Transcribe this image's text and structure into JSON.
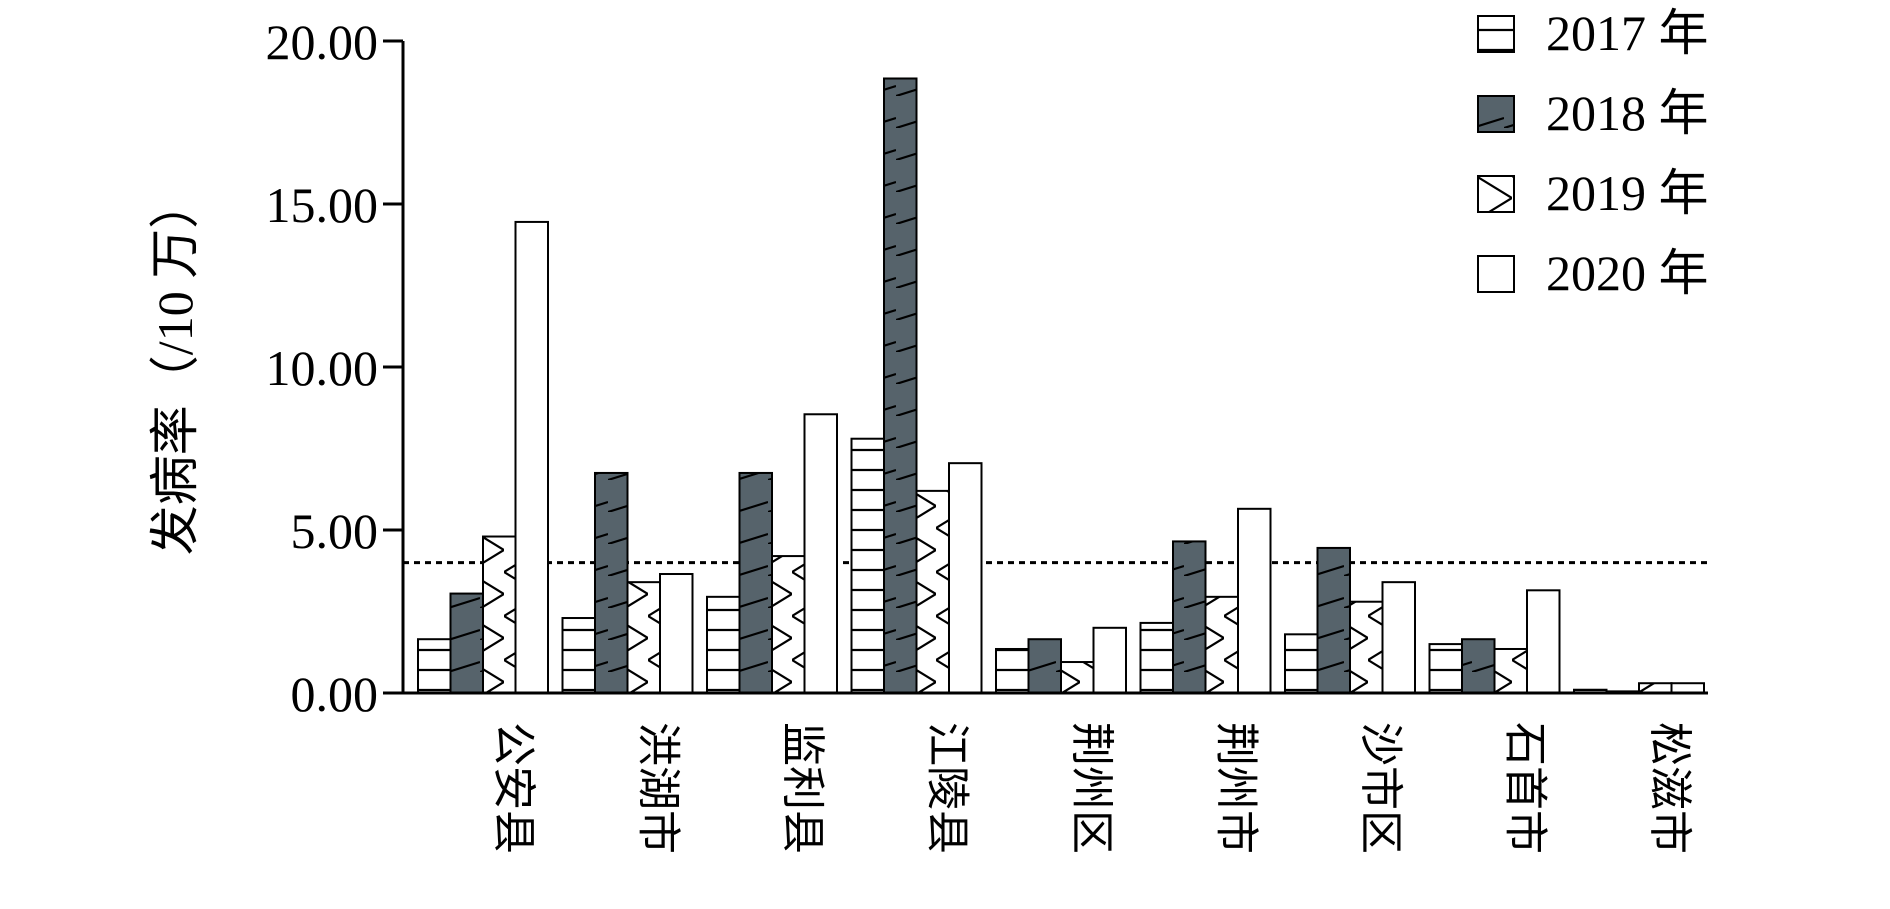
{
  "chart_data": {
    "type": "bar",
    "title": "",
    "xlabel": "",
    "ylabel": "发病率（/10 万）",
    "ylim": [
      0,
      20
    ],
    "yticks": [
      "0.00",
      "5.00",
      "10.00",
      "15.00",
      "20.00"
    ],
    "reference_line": 4.0,
    "legend_position": "top-right",
    "categories": [
      "公安县",
      "洪湖市",
      "监利县",
      "江陵县",
      "荆州区",
      "荆州市",
      "沙市区",
      "石首市",
      "松滋市"
    ],
    "series": [
      {
        "name": "2017 年",
        "pattern": "horizontal-lines",
        "color": "#ffffff",
        "values": [
          1.65,
          2.3,
          2.95,
          7.8,
          1.35,
          2.15,
          1.8,
          1.5,
          0.1
        ]
      },
      {
        "name": "2018 年",
        "pattern": "diagonal-lines-filled",
        "color": "#56636b",
        "values": [
          3.05,
          6.75,
          6.75,
          18.85,
          1.65,
          4.65,
          4.45,
          1.65,
          0.05
        ]
      },
      {
        "name": "2019 年",
        "pattern": "cross-hatch",
        "color": "#ffffff",
        "values": [
          4.8,
          3.4,
          4.2,
          6.2,
          0.95,
          2.95,
          2.8,
          1.35,
          0.3
        ]
      },
      {
        "name": "2020 年",
        "pattern": "none",
        "color": "#ffffff",
        "values": [
          14.45,
          3.65,
          8.55,
          7.05,
          2.0,
          5.65,
          3.4,
          3.15,
          0.3
        ]
      }
    ]
  }
}
